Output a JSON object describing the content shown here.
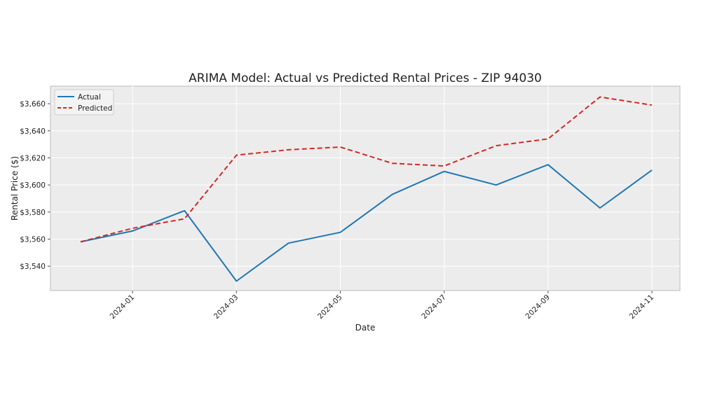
{
  "chart_data": {
    "type": "line",
    "title": "ARIMA Model: Actual vs Predicted Rental Prices - ZIP 94030",
    "xlabel": "Date",
    "ylabel": "Rental Price ($)",
    "x": [
      "2023-12",
      "2024-01",
      "2024-02",
      "2024-03",
      "2024-04",
      "2024-05",
      "2024-06",
      "2024-07",
      "2024-08",
      "2024-09",
      "2024-10",
      "2024-11"
    ],
    "xticks": [
      "2024-01",
      "2024-03",
      "2024-05",
      "2024-07",
      "2024-09",
      "2024-11"
    ],
    "yticks": [
      3540,
      3560,
      3580,
      3600,
      3620,
      3640,
      3660
    ],
    "ytick_labels": [
      "$3,540",
      "$3,560",
      "$3,580",
      "$3,600",
      "$3,620",
      "$3,640",
      "$3,660"
    ],
    "ylim": [
      3522,
      3673
    ],
    "grid": true,
    "legend_position": "top-left",
    "series": [
      {
        "name": "Actual",
        "style": "solid",
        "color": "#1f77b4",
        "values": [
          3558,
          3566,
          3581,
          3529,
          3557,
          3565,
          3593,
          3610,
          3600,
          3615,
          3583,
          3611
        ]
      },
      {
        "name": "Predicted",
        "style": "dashed",
        "color": "#d62728",
        "values": [
          3558,
          3568,
          3575,
          3622,
          3626,
          3628,
          3616,
          3614,
          3629,
          3634,
          3665,
          3659
        ]
      }
    ]
  }
}
